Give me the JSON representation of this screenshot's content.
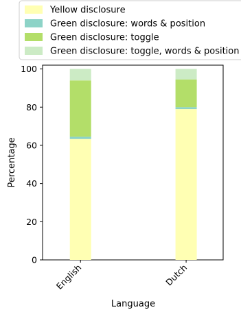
{
  "chart_data": {
    "type": "bar",
    "stacked": true,
    "categories": [
      "English",
      "Dutch"
    ],
    "series": [
      {
        "name": "Yellow disclosure",
        "color": "#ffffb3",
        "values": [
          63.3,
          79.0
        ]
      },
      {
        "name": "Green disclosure: words & position",
        "color": "#8dd3c7",
        "values": [
          1.2,
          1.0
        ]
      },
      {
        "name": "Green disclosure: toggle",
        "color": "#b3de69",
        "values": [
          29.5,
          14.5
        ]
      },
      {
        "name": "Green disclosure: toggle, words & position",
        "color": "#ccebc5",
        "values": [
          6.0,
          5.5
        ]
      }
    ],
    "xlabel": "Language",
    "ylabel": "Percentage",
    "ylim": [
      0,
      102
    ],
    "yticks": [
      0,
      20,
      40,
      60,
      80,
      100
    ],
    "legend_position": "top",
    "grid": false
  }
}
